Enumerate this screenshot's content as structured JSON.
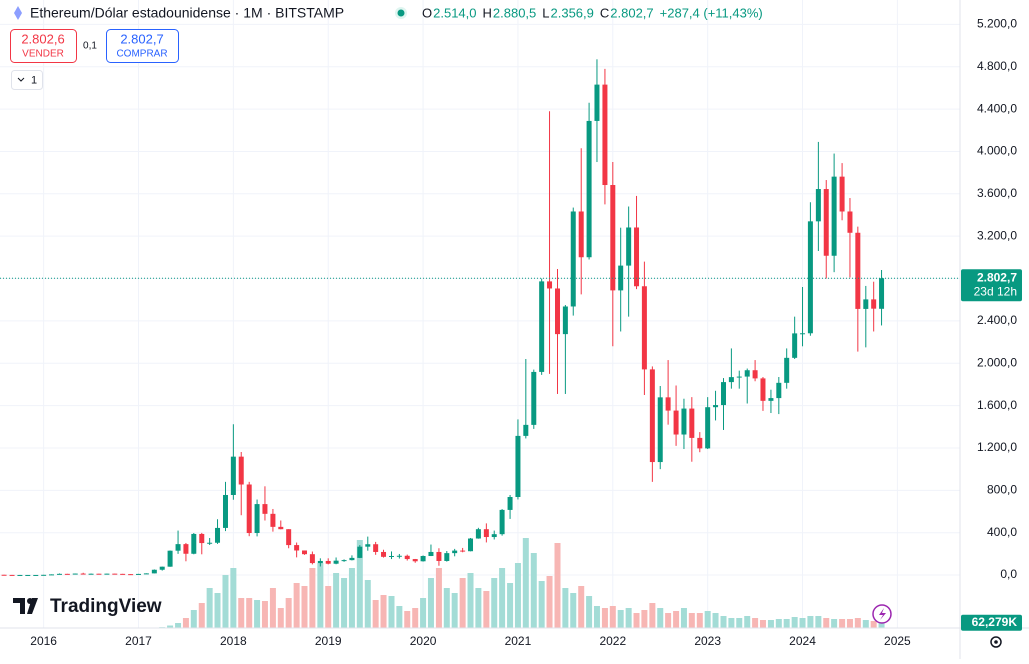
{
  "header": {
    "symbol": "Ethereum/Dólar estadounidense · 1M · BITSTAMP",
    "ohlc": [
      {
        "key": "O",
        "text": "2.514,0"
      },
      {
        "key": "H",
        "text": "2.880,5"
      },
      {
        "key": "L",
        "text": "2.356,9"
      },
      {
        "key": "C",
        "text": "2.802,7"
      }
    ],
    "change": "+287,4 (+11,43%)"
  },
  "trade": {
    "sell_price": "2.802,6",
    "sell_label": "VENDER",
    "spread": "0,1",
    "buy_price": "2.802,7",
    "buy_label": "COMPRAR"
  },
  "indicator_count": "1",
  "logo": "TradingView",
  "chart_data": {
    "type": "candlestick",
    "x": [
      2015.583,
      2015.667,
      2015.75,
      2015.833,
      2015.917,
      2016,
      2016.083,
      2016.167,
      2016.25,
      2016.333,
      2016.417,
      2016.5,
      2016.583,
      2016.667,
      2016.75,
      2016.833,
      2016.917,
      2017,
      2017.083,
      2017.167,
      2017.25,
      2017.333,
      2017.417,
      2017.5,
      2017.583,
      2017.667,
      2017.75,
      2017.833,
      2017.917,
      2018,
      2018.083,
      2018.167,
      2018.25,
      2018.333,
      2018.417,
      2018.5,
      2018.583,
      2018.667,
      2018.75,
      2018.833,
      2018.917,
      2019,
      2019.083,
      2019.167,
      2019.25,
      2019.333,
      2019.417,
      2019.5,
      2019.583,
      2019.667,
      2019.75,
      2019.833,
      2019.917,
      2020,
      2020.083,
      2020.167,
      2020.25,
      2020.333,
      2020.417,
      2020.5,
      2020.583,
      2020.667,
      2020.75,
      2020.833,
      2020.917,
      2021,
      2021.083,
      2021.167,
      2021.25,
      2021.333,
      2021.417,
      2021.5,
      2021.583,
      2021.667,
      2021.75,
      2021.833,
      2021.917,
      2022,
      2022.083,
      2022.167,
      2022.25,
      2022.333,
      2022.417,
      2022.5,
      2022.583,
      2022.667,
      2022.75,
      2022.833,
      2022.917,
      2023,
      2023.083,
      2023.167,
      2023.25,
      2023.333,
      2023.417,
      2023.5,
      2023.583,
      2023.667,
      2023.75,
      2023.833,
      2023.917,
      2024,
      2024.083,
      2024.167,
      2024.25,
      2024.333,
      2024.417,
      2024.5,
      2024.583,
      2024.667,
      2024.75,
      2024.833
    ],
    "open": [
      2.77,
      1.35,
      0.73,
      0.87,
      0.87,
      0.93,
      2.2,
      6.2,
      11.4,
      8.8,
      14,
      12.5,
      12.6,
      11.4,
      13.2,
      11.3,
      8.6,
      8,
      10.7,
      15.7,
      50,
      79,
      230,
      292,
      201,
      388,
      302,
      305,
      445,
      756,
      1118,
      855,
      397,
      670,
      578,
      455,
      433,
      283,
      232,
      197,
      113,
      133,
      107,
      136,
      141,
      162,
      268,
      291,
      218,
      172,
      180,
      182,
      151,
      130,
      180,
      218,
      133,
      207,
      231,
      225,
      345,
      433,
      359,
      386,
      615,
      737,
      1314,
      1418,
      1918,
      2773,
      2706,
      2275,
      2536,
      3433,
      3001,
      4288,
      4631,
      3683,
      2688,
      2922,
      3282,
      2727,
      1942,
      1067,
      1678,
      1553,
      1327,
      1572,
      1295,
      1196,
      1585,
      1605,
      1822,
      1869,
      1874,
      1934,
      1857,
      1645,
      1671,
      1815,
      2051,
      2282,
      2283,
      3340,
      3645,
      3015,
      3762,
      3433,
      3232,
      2513,
      2603,
      2514
    ],
    "high": [
      2.8,
      1.35,
      1.2,
      1,
      0.95,
      2.5,
      6.6,
      15,
      11.6,
      14.6,
      21.5,
      14.9,
      12.6,
      14.4,
      13.3,
      11.3,
      9.1,
      11.2,
      16.3,
      53,
      80,
      232,
      420,
      303,
      397,
      398,
      350,
      527,
      880,
      1424,
      1162,
      880,
      713,
      838,
      624,
      515,
      433,
      307,
      232,
      222,
      158,
      158,
      166,
      148,
      186,
      283,
      363,
      313,
      239,
      223,
      199,
      193,
      152,
      185,
      288,
      253,
      227,
      247,
      256,
      350,
      446,
      488,
      420,
      623,
      756,
      1470,
      2040,
      1940,
      2800,
      4380,
      2890,
      2550,
      3470,
      4030,
      4460,
      4870,
      4780,
      3900,
      3280,
      3480,
      3580,
      2960,
      1970,
      1785,
      2030,
      1790,
      1665,
      1680,
      1350,
      1680,
      1740,
      1860,
      2140,
      1930,
      1950,
      2030,
      1870,
      1750,
      1870,
      2140,
      2440,
      2720,
      3520,
      4090,
      3730,
      3980,
      3890,
      3560,
      3290,
      2730,
      2770,
      2880.5
    ],
    "low": [
      0.7,
      0.55,
      0.42,
      0.78,
      0.82,
      0.93,
      2.1,
      6,
      6.9,
      8.8,
      10,
      10.6,
      10,
      11.3,
      10.5,
      8.1,
      6.1,
      7.9,
      10.4,
      15.5,
      42,
      78,
      200,
      130,
      196,
      196,
      284,
      294,
      415,
      711,
      565,
      367,
      365,
      515,
      410,
      432,
      253,
      167,
      191,
      101,
      81,
      101,
      102,
      125,
      138,
      160,
      230,
      191,
      165,
      151,
      156,
      137,
      116,
      127,
      179,
      88,
      127,
      177,
      215,
      224,
      343,
      308,
      336,
      372,
      530,
      714,
      1290,
      1380,
      1890,
      1900,
      1710,
      1710,
      2450,
      2650,
      2980,
      3900,
      3500,
      2160,
      2300,
      2440,
      2700,
      1700,
      880,
      1000,
      1420,
      1220,
      1190,
      1070,
      1160,
      1190,
      1460,
      1370,
      1760,
      1760,
      1620,
      1830,
      1550,
      1530,
      1520,
      1760,
      2040,
      2160,
      2260,
      3060,
      2800,
      2860,
      3350,
      2810,
      2110,
      2150,
      2300,
      2356.9
    ],
    "close": [
      1.35,
      0.73,
      0.87,
      0.87,
      0.93,
      2.2,
      6.2,
      11.4,
      8.8,
      14,
      12.5,
      12.6,
      11.4,
      13.2,
      11.3,
      8.6,
      8,
      10.7,
      15.7,
      50,
      79,
      230,
      292,
      201,
      388,
      302,
      305,
      445,
      756,
      1118,
      855,
      397,
      670,
      578,
      455,
      433,
      283,
      232,
      197,
      113,
      133,
      107,
      136,
      141,
      162,
      268,
      291,
      218,
      172,
      180,
      182,
      151,
      130,
      180,
      218,
      133,
      207,
      231,
      225,
      345,
      433,
      359,
      386,
      615,
      737,
      1314,
      1418,
      1918,
      2773,
      2706,
      2275,
      2536,
      3433,
      3001,
      4288,
      4631,
      3683,
      2688,
      2922,
      3282,
      2727,
      1942,
      1067,
      1678,
      1553,
      1327,
      1572,
      1295,
      1196,
      1585,
      1605,
      1822,
      1869,
      1874,
      1934,
      1857,
      1645,
      1671,
      1815,
      2051,
      2282,
      2283,
      3340,
      3645,
      3015,
      3762,
      3433,
      3232,
      2513,
      2603,
      2515.3,
      2802.7
    ],
    "up_color": "#089981",
    "down_color": "#f23645",
    "volume": {
      "values": [
        0,
        0,
        0,
        0,
        0,
        0,
        0,
        0,
        0,
        0,
        0,
        0,
        0,
        0,
        0,
        0,
        0,
        1000,
        2000,
        5000,
        10000,
        30000,
        60000,
        120000,
        216000,
        300000,
        480000,
        420000,
        636000,
        720000,
        360000,
        360000,
        336000,
        324000,
        480000,
        240000,
        360000,
        540000,
        504000,
        720000,
        780000,
        504000,
        660000,
        600000,
        720000,
        1056000,
        576000,
        336000,
        396000,
        384000,
        264000,
        204000,
        240000,
        360000,
        600000,
        720000,
        480000,
        420000,
        600000,
        660000,
        480000,
        444000,
        600000,
        720000,
        540000,
        780000,
        1080000,
        900000,
        564000,
        624000,
        1020000,
        480000,
        420000,
        504000,
        384000,
        264000,
        240000,
        264000,
        216000,
        240000,
        180000,
        216000,
        300000,
        240000,
        180000,
        204000,
        240000,
        180000,
        180000,
        204000,
        180000,
        144000,
        120000,
        120000,
        144000,
        120000,
        96000,
        96000,
        108000,
        108000,
        132000,
        120000,
        144000,
        144000,
        120000,
        108000,
        108000,
        108000,
        120000,
        96000,
        84000,
        62279
      ],
      "up_color": "#a3dcd6",
      "down_color": "#f7b6b4",
      "last_label": "62,279K"
    },
    "last_price_label": "2.802,7",
    "countdown": "23d 12h",
    "xlim": [
      2015.54,
      2025.66
    ],
    "xticks": [
      2016,
      2017,
      2018,
      2019,
      2020,
      2021,
      2022,
      2023,
      2024,
      2025
    ],
    "ylim": [
      -500,
      5430
    ],
    "yticks": [
      {
        "value": 0,
        "label": "0,0"
      },
      {
        "value": 400,
        "label": "400,0"
      },
      {
        "value": 800,
        "label": "800,0"
      },
      {
        "value": 1200,
        "label": "1.200,0"
      },
      {
        "value": 1600,
        "label": "1.600,0"
      },
      {
        "value": 2000,
        "label": "2.000,0"
      },
      {
        "value": 2400,
        "label": "2.400,0"
      },
      {
        "value": 2800,
        "label": "2.800,0"
      },
      {
        "value": 3200,
        "label": "3.200,0"
      },
      {
        "value": 3600,
        "label": "3.600,0"
      },
      {
        "value": 4000,
        "label": "4.000,0"
      },
      {
        "value": 4400,
        "label": "4.400,0"
      },
      {
        "value": 4800,
        "label": "4.800,0"
      },
      {
        "value": 5200,
        "label": "5.200,0"
      }
    ],
    "grid": true
  }
}
